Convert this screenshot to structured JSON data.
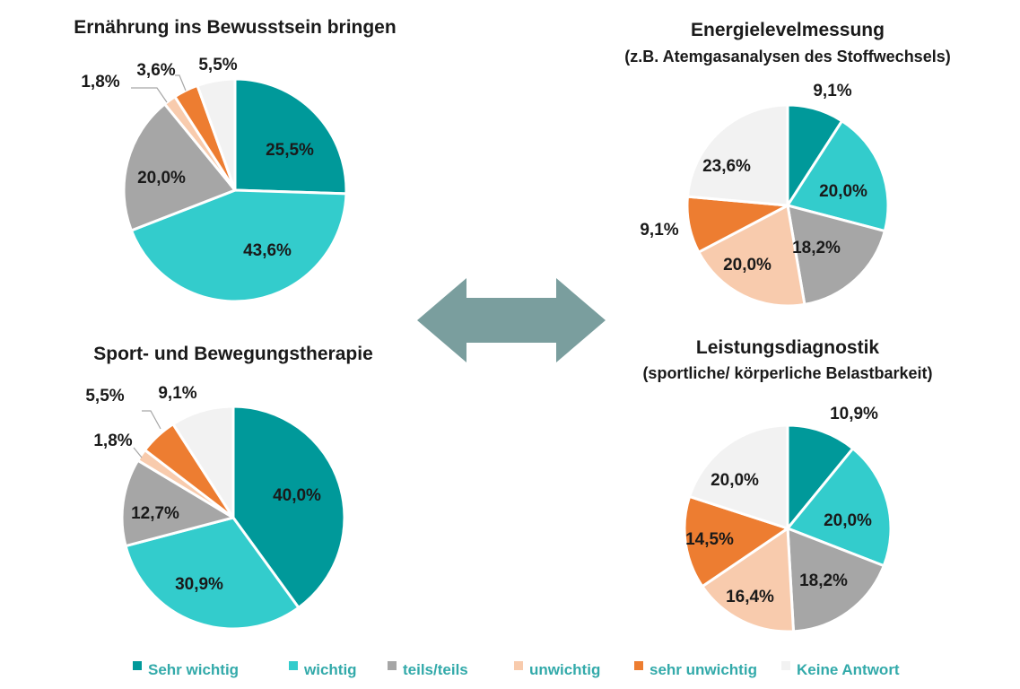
{
  "colors": {
    "category_colors": [
      "#00999a",
      "#33cccc",
      "#a6a6a6",
      "#f8cbad",
      "#ed7d31",
      "#f2f2f2"
    ],
    "arrow": "#7a9e9e",
    "legend_text": "#33aaaa"
  },
  "legend": {
    "placement": "bottom",
    "items": [
      "Sehr wichtig",
      "wichtig",
      "teils/teils",
      "unwichtig",
      "sehr unwichtig",
      "Keine Antwort"
    ]
  },
  "center_icon": "double-arrow-icon",
  "chart_data": [
    {
      "type": "pie",
      "title": "Ernährung ins Bewusstsein bringen",
      "subtitle": "",
      "categories": [
        "Sehr wichtig",
        "wichtig",
        "teils/teils",
        "unwichtig",
        "sehr unwichtig",
        "Keine Antwort"
      ],
      "values": [
        25.5,
        43.6,
        20.0,
        1.8,
        3.6,
        5.5
      ],
      "labels": [
        "25,5%",
        "43,6%",
        "20,0%",
        "1,8%",
        "3,6%",
        "5,5%"
      ]
    },
    {
      "type": "pie",
      "title": "Sport- und Bewegungstherapie",
      "subtitle": "",
      "categories": [
        "Sehr wichtig",
        "wichtig",
        "teils/teils",
        "unwichtig",
        "sehr unwichtig",
        "Keine Antwort"
      ],
      "values": [
        40.0,
        30.9,
        12.7,
        1.8,
        5.5,
        9.1
      ],
      "labels": [
        "40,0%",
        "30,9%",
        "12,7%",
        "1,8%",
        "5,5%",
        "9,1%"
      ]
    },
    {
      "type": "pie",
      "title": "Energielevelmessung",
      "subtitle": "(z.B. Atemgasanalysen des Stoffwechsels)",
      "categories": [
        "Sehr wichtig",
        "wichtig",
        "teils/teils",
        "unwichtig",
        "sehr unwichtig",
        "Keine Antwort"
      ],
      "values": [
        9.1,
        20.0,
        18.2,
        20.0,
        9.1,
        23.6
      ],
      "labels": [
        "9,1%",
        "20,0%",
        "18,2%",
        "20,0%",
        "9,1%",
        "23,6%"
      ]
    },
    {
      "type": "pie",
      "title": "Leistungsdiagnostik",
      "subtitle": "(sportliche/ körperliche Belastbarkeit)",
      "categories": [
        "Sehr wichtig",
        "wichtig",
        "teils/teils",
        "unwichtig",
        "sehr unwichtig",
        "Keine Antwort"
      ],
      "values": [
        10.9,
        20.0,
        18.2,
        16.4,
        14.5,
        20.0
      ],
      "labels": [
        "10,9%",
        "20,0%",
        "18,2%",
        "16,4%",
        "14,5%",
        "20,0%"
      ]
    }
  ]
}
